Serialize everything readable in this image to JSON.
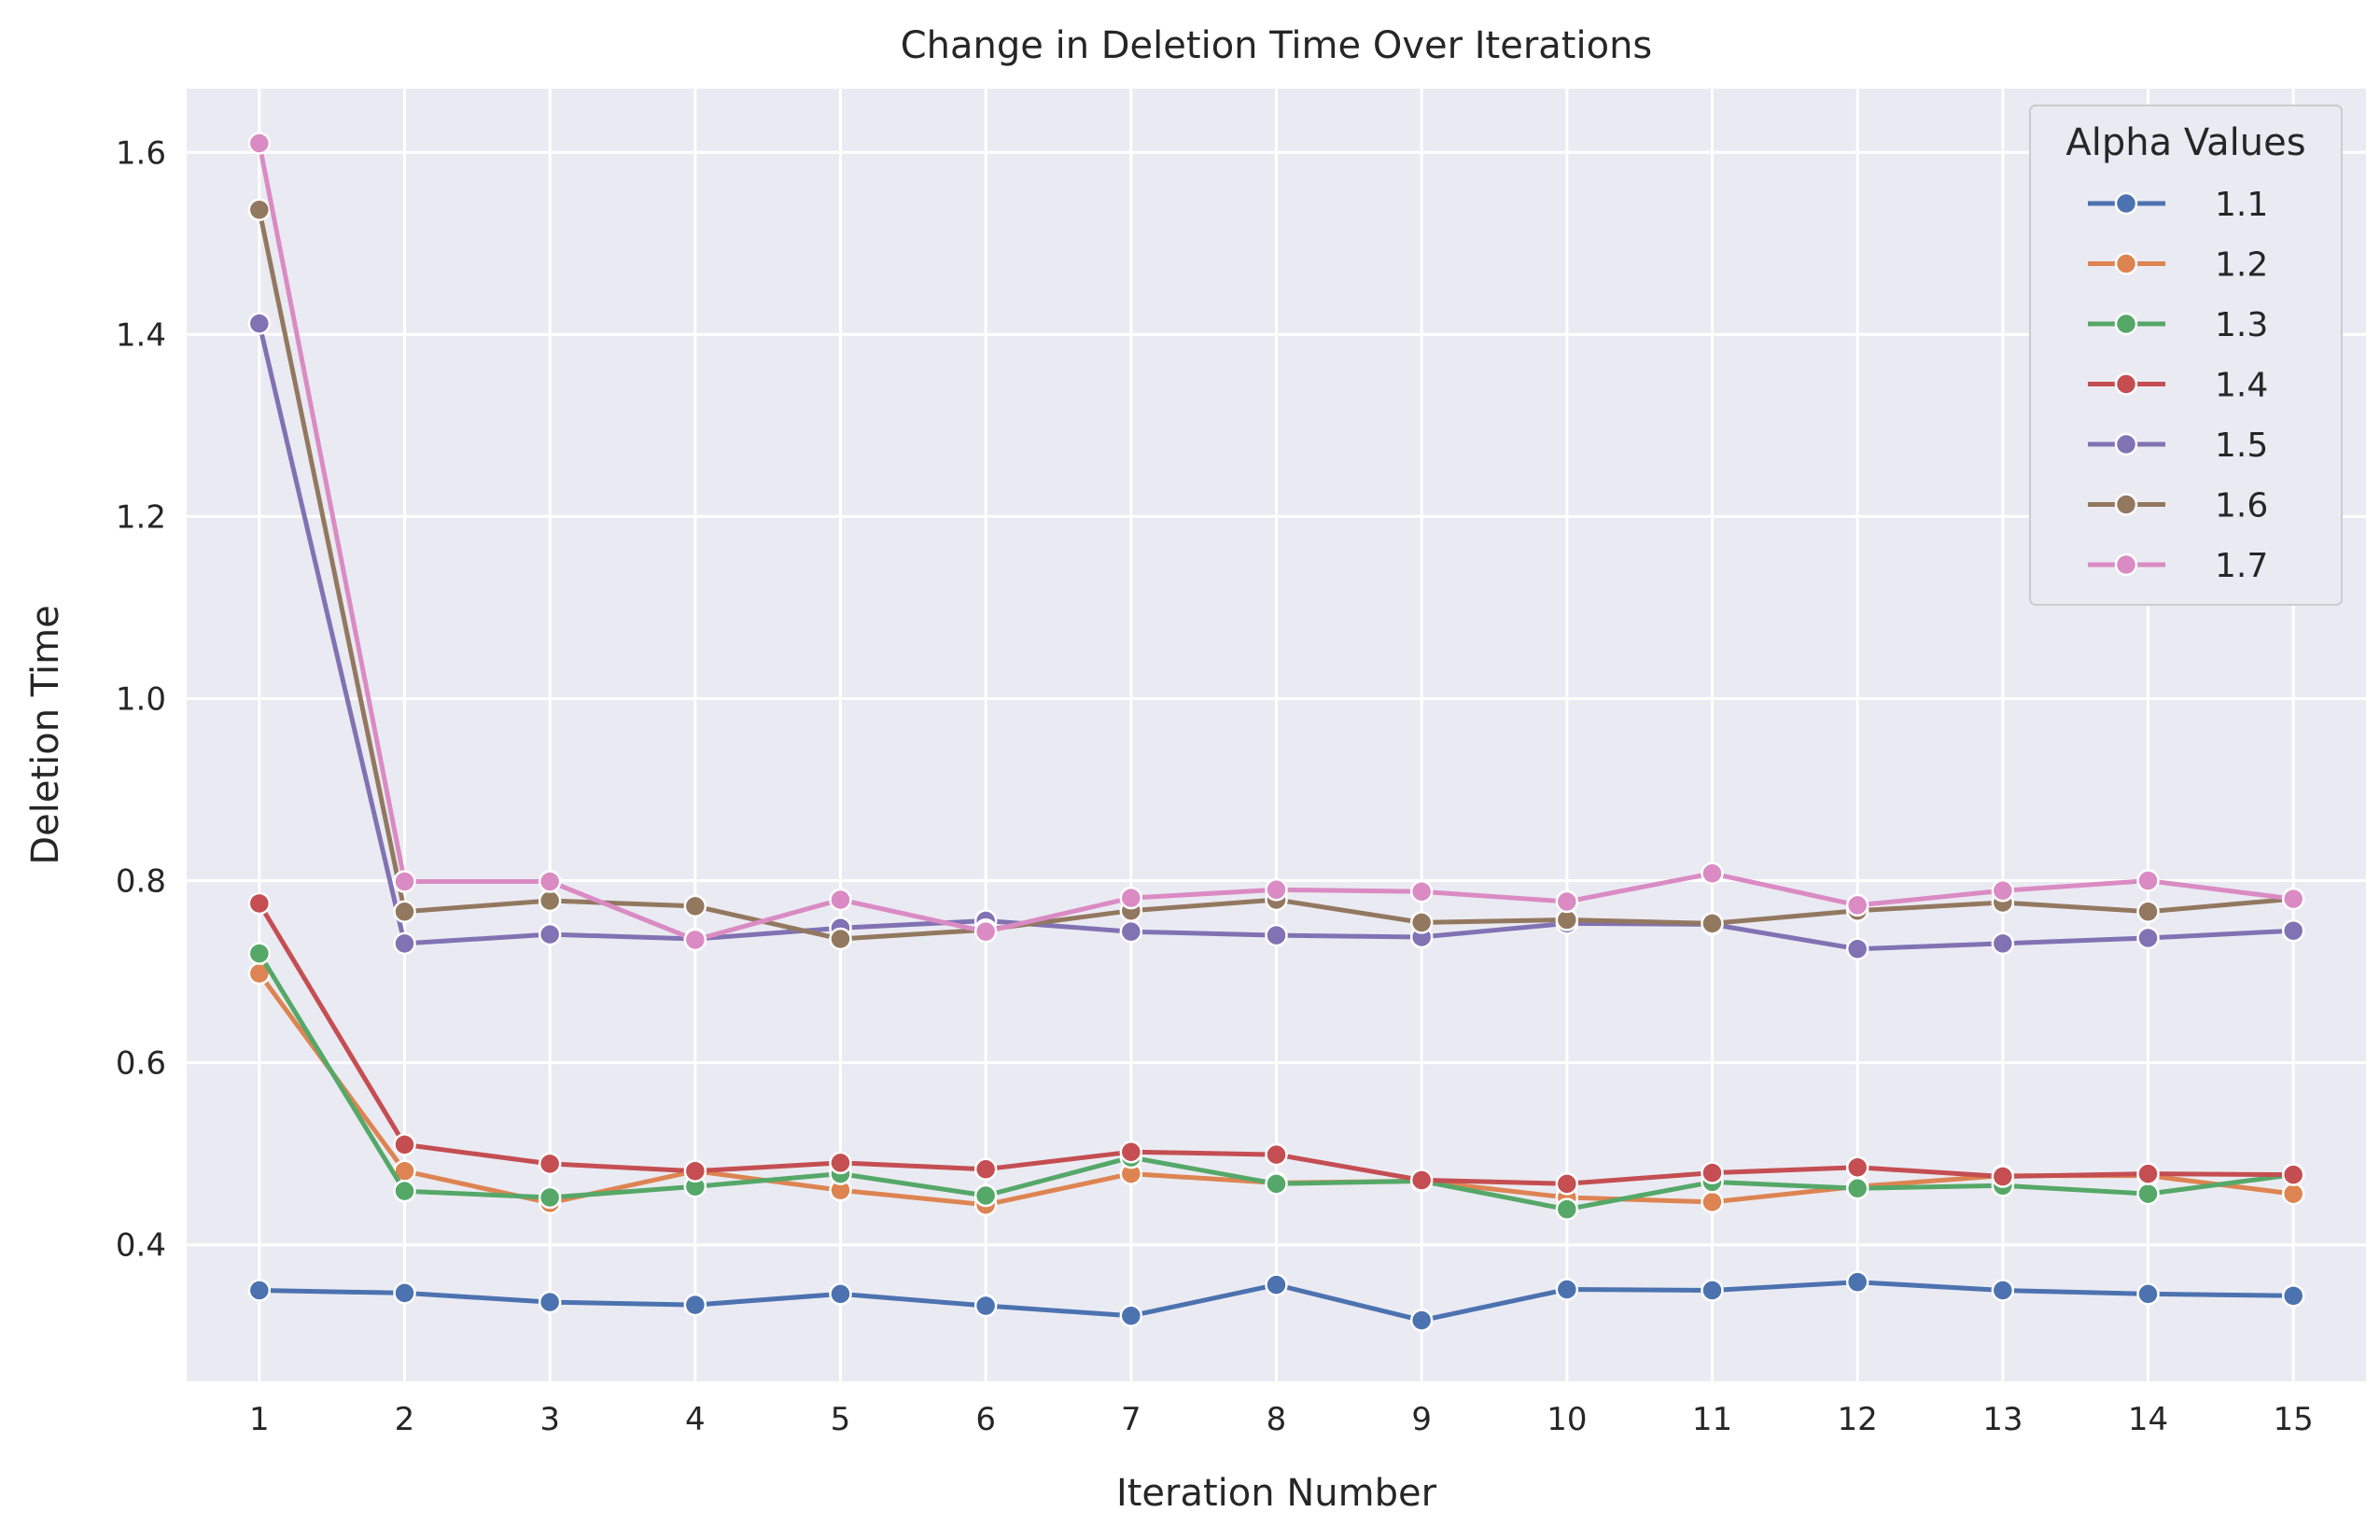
{
  "chart_data": {
    "type": "line",
    "title": "Change in Deletion Time Over Iterations",
    "xlabel": "Iteration Number",
    "ylabel": "Deletion Time",
    "x": [
      1,
      2,
      3,
      4,
      5,
      6,
      7,
      8,
      9,
      10,
      11,
      12,
      13,
      14,
      15
    ],
    "xlim": [
      0.5,
      15.5
    ],
    "ylim": [
      0.25,
      1.67
    ],
    "yticks": [
      0.4,
      0.6,
      0.8,
      1.0,
      1.2,
      1.4,
      1.6
    ],
    "ytick_labels": [
      "0.4",
      "0.6",
      "0.8",
      "1.0",
      "1.2",
      "1.4",
      "1.6"
    ],
    "grid": true,
    "legend": {
      "title": "Alpha Values",
      "placement": "top-right"
    },
    "series": [
      {
        "name": "1.1",
        "color": "#4c72b0",
        "values": [
          0.35,
          0.347,
          0.337,
          0.334,
          0.346,
          0.333,
          0.322,
          0.356,
          0.317,
          0.351,
          0.35,
          0.359,
          0.35,
          0.346,
          0.344
        ]
      },
      {
        "name": "1.2",
        "color": "#dd8452",
        "values": [
          0.698,
          0.481,
          0.446,
          0.481,
          0.46,
          0.444,
          0.478,
          0.468,
          0.47,
          0.452,
          0.447,
          0.464,
          0.476,
          0.476,
          0.456
        ]
      },
      {
        "name": "1.3",
        "color": "#55a868",
        "values": [
          0.72,
          0.459,
          0.452,
          0.464,
          0.478,
          0.454,
          0.496,
          0.467,
          0.47,
          0.439,
          0.469,
          0.462,
          0.465,
          0.456,
          0.477
        ]
      },
      {
        "name": "1.4",
        "color": "#c44e52",
        "values": [
          0.775,
          0.51,
          0.489,
          0.481,
          0.49,
          0.483,
          0.502,
          0.499,
          0.471,
          0.467,
          0.479,
          0.485,
          0.475,
          0.478,
          0.477
        ]
      },
      {
        "name": "1.5",
        "color": "#8172b3",
        "values": [
          1.412,
          0.731,
          0.741,
          0.736,
          0.748,
          0.756,
          0.744,
          0.74,
          0.738,
          0.753,
          0.752,
          0.725,
          0.731,
          0.737,
          0.745
        ]
      },
      {
        "name": "1.6",
        "color": "#937860",
        "values": [
          1.537,
          0.766,
          0.778,
          0.772,
          0.736,
          0.746,
          0.767,
          0.779,
          0.754,
          0.757,
          0.753,
          0.767,
          0.776,
          0.766,
          0.78
        ]
      },
      {
        "name": "1.7",
        "color": "#da8bc3",
        "values": [
          1.61,
          0.799,
          0.799,
          0.735,
          0.779,
          0.744,
          0.781,
          0.79,
          0.788,
          0.777,
          0.808,
          0.773,
          0.789,
          0.8,
          0.78
        ]
      }
    ]
  }
}
